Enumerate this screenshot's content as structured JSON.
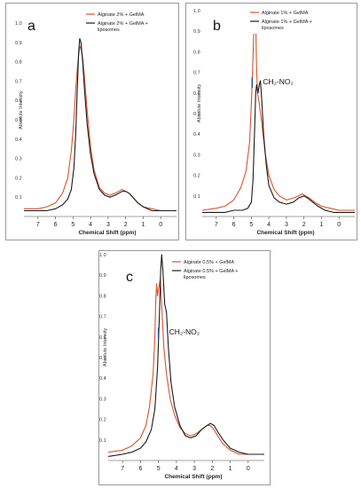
{
  "chart_data": [
    {
      "type": "line",
      "panel_letter": "a",
      "ylabel": "Absolute Intensity",
      "xlabel": "Chemical Shift (ppm)",
      "xlim": [
        7.8,
        -0.9
      ],
      "ylim": [
        0,
        1.0
      ],
      "x_ticks": [
        7,
        6,
        5,
        4,
        3,
        2,
        1,
        0
      ],
      "y_ticks": [
        "0.1",
        "0.2",
        "0.3",
        "0.4",
        "0.5",
        "0.6",
        "0.7",
        "0.8",
        "0.9",
        "1.0"
      ],
      "legend_position": "top-right",
      "annotation": null,
      "series": [
        {
          "name": "Alginate 2% + GelMA",
          "color": "#d9532c",
          "points": [
            [
              7.8,
              0.04
            ],
            [
              7.0,
              0.04
            ],
            [
              6.5,
              0.05
            ],
            [
              6.0,
              0.07
            ],
            [
              5.6,
              0.12
            ],
            [
              5.3,
              0.2
            ],
            [
              5.1,
              0.34
            ],
            [
              4.95,
              0.5
            ],
            [
              4.85,
              0.65
            ],
            [
              4.75,
              0.77
            ],
            [
              4.68,
              0.84
            ],
            [
              4.6,
              0.88
            ],
            [
              4.55,
              0.87
            ],
            [
              4.45,
              0.82
            ],
            [
              4.35,
              0.72
            ],
            [
              4.2,
              0.55
            ],
            [
              4.0,
              0.36
            ],
            [
              3.8,
              0.24
            ],
            [
              3.5,
              0.15
            ],
            [
              3.2,
              0.12
            ],
            [
              2.9,
              0.11
            ],
            [
              2.6,
              0.12
            ],
            [
              2.4,
              0.13
            ],
            [
              2.2,
              0.14
            ],
            [
              2.0,
              0.13
            ],
            [
              1.8,
              0.12
            ],
            [
              1.6,
              0.1
            ],
            [
              1.3,
              0.07
            ],
            [
              1.0,
              0.05
            ],
            [
              0.5,
              0.04
            ],
            [
              0,
              0.03
            ],
            [
              -0.9,
              0.03
            ]
          ]
        },
        {
          "name": "Alginate 2% + GelMA + liposomes",
          "color": "#1a1a1a",
          "points": [
            [
              7.8,
              0.03
            ],
            [
              7.0,
              0.03
            ],
            [
              6.5,
              0.03
            ],
            [
              6.0,
              0.04
            ],
            [
              5.6,
              0.06
            ],
            [
              5.3,
              0.09
            ],
            [
              5.1,
              0.14
            ],
            [
              4.95,
              0.25
            ],
            [
              4.85,
              0.42
            ],
            [
              4.75,
              0.68
            ],
            [
              4.68,
              0.85
            ],
            [
              4.62,
              0.92
            ],
            [
              4.55,
              0.9
            ],
            [
              4.45,
              0.8
            ],
            [
              4.35,
              0.66
            ],
            [
              4.2,
              0.48
            ],
            [
              4.0,
              0.32
            ],
            [
              3.8,
              0.22
            ],
            [
              3.5,
              0.14
            ],
            [
              3.2,
              0.11
            ],
            [
              2.9,
              0.1
            ],
            [
              2.6,
              0.11
            ],
            [
              2.4,
              0.12
            ],
            [
              2.2,
              0.13
            ],
            [
              2.0,
              0.13
            ],
            [
              1.8,
              0.12
            ],
            [
              1.6,
              0.1
            ],
            [
              1.3,
              0.07
            ],
            [
              1.0,
              0.05
            ],
            [
              0.5,
              0.03
            ],
            [
              0,
              0.03
            ],
            [
              -0.9,
              0.03
            ]
          ]
        }
      ]
    },
    {
      "type": "line",
      "panel_letter": "b",
      "ylabel": "Absolute Intensity",
      "xlabel": "Chemical Shift (ppm)",
      "xlim": [
        7.8,
        -0.9
      ],
      "ylim": [
        0,
        1.0
      ],
      "x_ticks": [
        7,
        6,
        5,
        4,
        3,
        2,
        1,
        0
      ],
      "y_ticks": [
        "0.1",
        "0.2",
        "0.3",
        "0.4",
        "0.5",
        "0.6",
        "0.7",
        "0.8",
        "0.9",
        "1.0"
      ],
      "legend_position": "top-right",
      "annotation": {
        "text": "CH₂-NO₂",
        "x": 4.95,
        "y": 0.65
      },
      "series": [
        {
          "name": "Alginate 1% + GelMA",
          "color": "#d9532c",
          "points": [
            [
              7.8,
              0.03
            ],
            [
              7.0,
              0.04
            ],
            [
              6.5,
              0.05
            ],
            [
              6.0,
              0.08
            ],
            [
              5.6,
              0.14
            ],
            [
              5.3,
              0.22
            ],
            [
              5.1,
              0.36
            ],
            [
              5.0,
              0.55
            ],
            [
              4.9,
              0.78
            ],
            [
              4.85,
              0.92
            ],
            [
              4.8,
              1.0
            ],
            [
              4.75,
              0.94
            ],
            [
              4.7,
              0.72
            ],
            [
              4.65,
              0.6
            ],
            [
              4.55,
              0.55
            ],
            [
              4.4,
              0.45
            ],
            [
              4.2,
              0.3
            ],
            [
              4.0,
              0.2
            ],
            [
              3.7,
              0.13
            ],
            [
              3.4,
              0.1
            ],
            [
              3.0,
              0.08
            ],
            [
              2.6,
              0.09
            ],
            [
              2.3,
              0.1
            ],
            [
              2.1,
              0.11
            ],
            [
              1.9,
              0.1
            ],
            [
              1.7,
              0.09
            ],
            [
              1.4,
              0.07
            ],
            [
              1.0,
              0.05
            ],
            [
              0.5,
              0.04
            ],
            [
              0,
              0.03
            ],
            [
              -0.9,
              0.03
            ]
          ]
        },
        {
          "name": "Alginate 1% + GelMA + liposomes",
          "color": "#1a1a1a",
          "points": [
            [
              7.8,
              0.02
            ],
            [
              7.0,
              0.02
            ],
            [
              6.5,
              0.02
            ],
            [
              6.0,
              0.03
            ],
            [
              5.5,
              0.03
            ],
            [
              5.2,
              0.04
            ],
            [
              5.0,
              0.07
            ],
            [
              4.9,
              0.18
            ],
            [
              4.82,
              0.4
            ],
            [
              4.75,
              0.6
            ],
            [
              4.7,
              0.64
            ],
            [
              4.62,
              0.6
            ],
            [
              4.55,
              0.64
            ],
            [
              4.48,
              0.66
            ],
            [
              4.4,
              0.56
            ],
            [
              4.3,
              0.4
            ],
            [
              4.15,
              0.25
            ],
            [
              4.0,
              0.15
            ],
            [
              3.7,
              0.09
            ],
            [
              3.4,
              0.07
            ],
            [
              3.0,
              0.06
            ],
            [
              2.6,
              0.07
            ],
            [
              2.3,
              0.09
            ],
            [
              2.0,
              0.1
            ],
            [
              1.8,
              0.09
            ],
            [
              1.5,
              0.07
            ],
            [
              1.2,
              0.05
            ],
            [
              0.8,
              0.03
            ],
            [
              0.3,
              0.02
            ],
            [
              -0.9,
              0.02
            ]
          ]
        }
      ]
    },
    {
      "type": "line",
      "panel_letter": "c",
      "ylabel": "Absolute Intensity",
      "xlabel": "Chemical Shift (ppm)",
      "xlim": [
        7.8,
        -0.9
      ],
      "ylim": [
        0,
        1.0
      ],
      "x_ticks": [
        7,
        6,
        5,
        4,
        3,
        2,
        1,
        0
      ],
      "y_ticks": [
        "0.1",
        "0.2",
        "0.3",
        "0.4",
        "0.5",
        "0.6",
        "0.7",
        "0.8",
        "0.9",
        "1.0"
      ],
      "legend_position": "top-right",
      "annotation": {
        "text": "CH₂-NO₂",
        "x": 5.0,
        "y": 0.62
      },
      "series": [
        {
          "name": "Alginate 0.5% + GelMA",
          "color": "#d9532c",
          "points": [
            [
              7.8,
              0.04
            ],
            [
              7.0,
              0.05
            ],
            [
              6.5,
              0.07
            ],
            [
              6.0,
              0.11
            ],
            [
              5.7,
              0.17
            ],
            [
              5.5,
              0.26
            ],
            [
              5.3,
              0.42
            ],
            [
              5.2,
              0.6
            ],
            [
              5.15,
              0.78
            ],
            [
              5.1,
              0.86
            ],
            [
              5.05,
              0.8
            ],
            [
              4.98,
              0.84
            ],
            [
              4.9,
              0.88
            ],
            [
              4.8,
              0.72
            ],
            [
              4.7,
              0.55
            ],
            [
              4.55,
              0.42
            ],
            [
              4.35,
              0.3
            ],
            [
              4.1,
              0.22
            ],
            [
              3.8,
              0.16
            ],
            [
              3.5,
              0.13
            ],
            [
              3.2,
              0.12
            ],
            [
              2.9,
              0.13
            ],
            [
              2.6,
              0.15
            ],
            [
              2.3,
              0.17
            ],
            [
              2.1,
              0.17
            ],
            [
              1.9,
              0.15
            ],
            [
              1.7,
              0.12
            ],
            [
              1.4,
              0.08
            ],
            [
              1.0,
              0.05
            ],
            [
              0.5,
              0.03
            ],
            [
              0,
              0.03
            ],
            [
              -0.9,
              0.03
            ]
          ]
        },
        {
          "name": "Alginate 0.5% + GelMA + liposomes",
          "color": "#1a1a1a",
          "points": [
            [
              7.8,
              0.02
            ],
            [
              7.0,
              0.03
            ],
            [
              6.5,
              0.04
            ],
            [
              6.0,
              0.06
            ],
            [
              5.7,
              0.09
            ],
            [
              5.4,
              0.15
            ],
            [
              5.2,
              0.25
            ],
            [
              5.05,
              0.45
            ],
            [
              4.95,
              0.7
            ],
            [
              4.88,
              0.92
            ],
            [
              4.82,
              1.0
            ],
            [
              4.75,
              0.92
            ],
            [
              4.65,
              0.76
            ],
            [
              4.55,
              0.72
            ],
            [
              4.45,
              0.55
            ],
            [
              4.3,
              0.38
            ],
            [
              4.1,
              0.26
            ],
            [
              3.8,
              0.17
            ],
            [
              3.5,
              0.12
            ],
            [
              3.2,
              0.11
            ],
            [
              2.9,
              0.12
            ],
            [
              2.6,
              0.15
            ],
            [
              2.3,
              0.17
            ],
            [
              2.1,
              0.18
            ],
            [
              1.9,
              0.17
            ],
            [
              1.7,
              0.14
            ],
            [
              1.4,
              0.1
            ],
            [
              1.0,
              0.06
            ],
            [
              0.5,
              0.04
            ],
            [
              0,
              0.03
            ],
            [
              -0.9,
              0.03
            ]
          ]
        }
      ]
    }
  ]
}
